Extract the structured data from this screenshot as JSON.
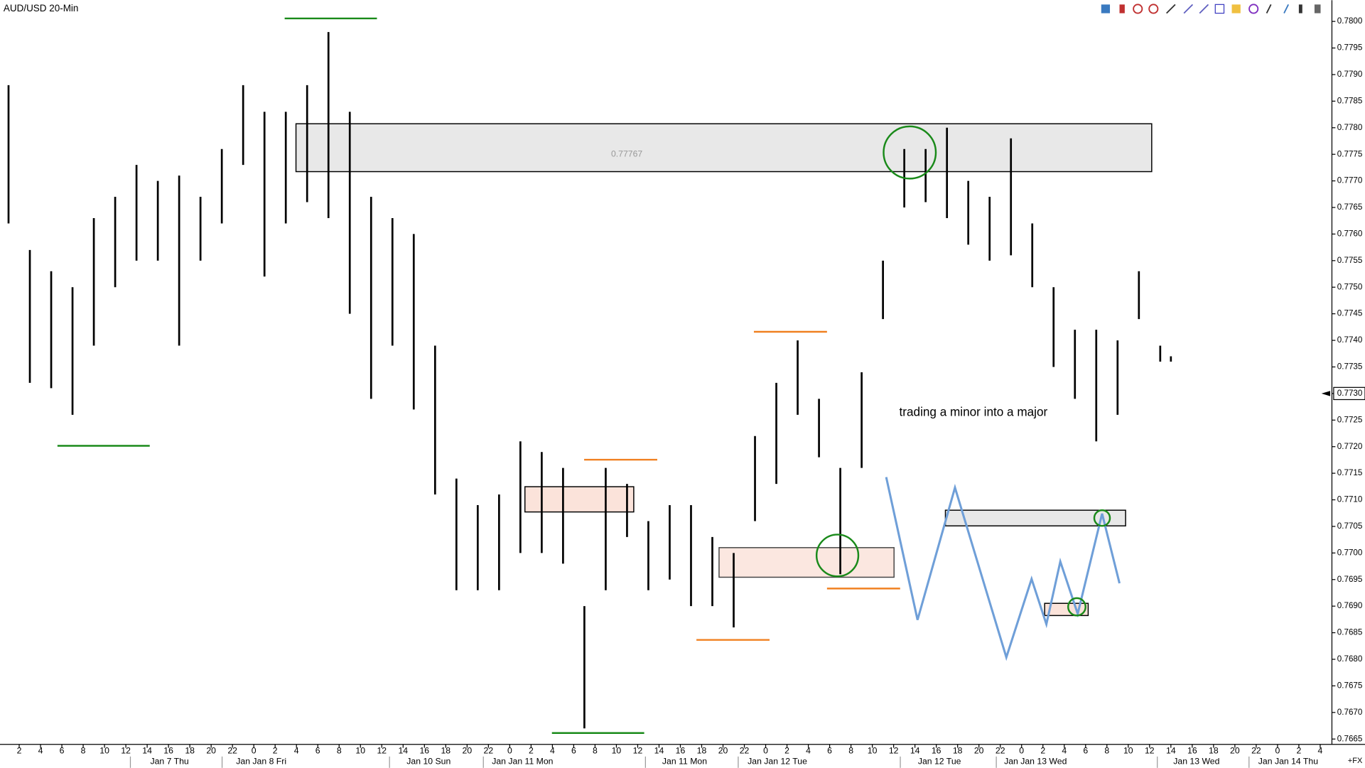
{
  "chart_data": {
    "type": "ohlc",
    "title": "AUD/USD 20-Min",
    "color": "#000000",
    "xlim": [
      0.2,
      125.1
    ],
    "ylim": [
      0.7664,
      0.7804
    ],
    "x": [
      1,
      3,
      5,
      7,
      9,
      11,
      13,
      15,
      17,
      19,
      21,
      23,
      25,
      27,
      29,
      31,
      33,
      35,
      37,
      39,
      41,
      43,
      45,
      47,
      49,
      51,
      53,
      55,
      57,
      59,
      61,
      63,
      65,
      67,
      69,
      71,
      73,
      75,
      77,
      79,
      81,
      83,
      85,
      87,
      89,
      91,
      93,
      95,
      97,
      99,
      101,
      103,
      105,
      107,
      109,
      110
    ],
    "high": [
      0.7788,
      0.7757,
      0.7753,
      0.775,
      0.7763,
      0.7767,
      0.7773,
      0.777,
      0.7771,
      0.7767,
      0.7776,
      0.7788,
      0.7783,
      0.7783,
      0.7788,
      0.7798,
      0.7783,
      0.7767,
      0.7763,
      0.776,
      0.7739,
      0.7714,
      0.7709,
      0.7711,
      0.7721,
      0.7719,
      0.7716,
      0.769,
      0.7716,
      0.7713,
      0.7706,
      0.7709,
      0.7709,
      0.7703,
      0.77,
      0.7722,
      0.7732,
      0.774,
      0.7729,
      0.7716,
      0.7734,
      0.7755,
      0.7776,
      0.7776,
      0.778,
      0.777,
      0.7767,
      0.7778,
      0.7762,
      0.775,
      0.7742,
      0.7742,
      0.774,
      0.7753,
      0.7739,
      0.7737
    ],
    "low": [
      0.7762,
      0.7732,
      0.7731,
      0.7726,
      0.7739,
      0.775,
      0.7755,
      0.7755,
      0.7739,
      0.7755,
      0.7762,
      0.7773,
      0.7752,
      0.7762,
      0.7766,
      0.7763,
      0.7745,
      0.7729,
      0.7739,
      0.7727,
      0.7711,
      0.7693,
      0.7693,
      0.7693,
      0.77,
      0.77,
      0.7698,
      0.7667,
      0.7693,
      0.7703,
      0.7693,
      0.7695,
      0.769,
      0.769,
      0.7686,
      0.7706,
      0.7713,
      0.7726,
      0.7718,
      0.7696,
      0.7716,
      0.7744,
      0.7765,
      0.7766,
      0.7763,
      0.7758,
      0.7755,
      0.7756,
      0.775,
      0.7735,
      0.7729,
      0.7721,
      0.7726,
      0.7744,
      0.7736,
      0.7736
    ],
    "yticks": [
      {
        "value": 0.78,
        "label": "0.7800"
      },
      {
        "value": 0.7795,
        "label": "0.7795"
      },
      {
        "value": 0.779,
        "label": "0.7790"
      },
      {
        "value": 0.7785,
        "label": "0.7785"
      },
      {
        "value": 0.778,
        "label": "0.7780"
      },
      {
        "value": 0.7775,
        "label": "0.7775"
      },
      {
        "value": 0.777,
        "label": "0.7770"
      },
      {
        "value": 0.7765,
        "label": "0.7765"
      },
      {
        "value": 0.776,
        "label": "0.7760"
      },
      {
        "value": 0.7755,
        "label": "0.7755"
      },
      {
        "value": 0.775,
        "label": "0.7750"
      },
      {
        "value": 0.7745,
        "label": "0.7745"
      },
      {
        "value": 0.774,
        "label": "0.7740"
      },
      {
        "value": 0.7735,
        "label": "0.7735"
      },
      {
        "value": 0.773,
        "label": "0.7730"
      },
      {
        "value": 0.7725,
        "label": "0.7725"
      },
      {
        "value": 0.772,
        "label": "0.7720"
      },
      {
        "value": 0.7715,
        "label": "0.7715"
      },
      {
        "value": 0.771,
        "label": "0.7710"
      },
      {
        "value": 0.7705,
        "label": "0.7705"
      },
      {
        "value": 0.77,
        "label": "0.7700"
      },
      {
        "value": 0.7695,
        "label": "0.7695"
      },
      {
        "value": 0.769,
        "label": "0.7690"
      },
      {
        "value": 0.7685,
        "label": "0.7685"
      },
      {
        "value": 0.768,
        "label": "0.7680"
      },
      {
        "value": 0.7675,
        "label": "0.7675"
      },
      {
        "value": 0.767,
        "label": "0.7670"
      },
      {
        "value": 0.7665,
        "label": "0.7665"
      }
    ],
    "xticks": [
      2,
      4,
      6,
      8,
      10,
      12,
      14,
      16,
      18,
      20,
      22,
      {
        "value": 24,
        "label": "0"
      },
      {
        "value": 26,
        "label": "2"
      },
      {
        "value": 28,
        "label": "4"
      },
      {
        "value": 30,
        "label": "6"
      },
      {
        "value": 32,
        "label": "8"
      },
      {
        "value": 34,
        "label": "10"
      },
      {
        "value": 36,
        "label": "12"
      },
      {
        "value": 38,
        "label": "14"
      },
      {
        "value": 40,
        "label": "16"
      },
      {
        "value": 42,
        "label": "18"
      },
      {
        "value": 44,
        "label": "20"
      },
      {
        "value": 46,
        "label": "22"
      },
      {
        "value": 48,
        "label": "0"
      },
      {
        "value": 50,
        "label": "2"
      },
      {
        "value": 52,
        "label": "4"
      },
      {
        "value": 54,
        "label": "6"
      },
      {
        "value": 56,
        "label": "8"
      },
      {
        "value": 58,
        "label": "10"
      },
      {
        "value": 60,
        "label": "12"
      },
      {
        "value": 62,
        "label": "14"
      },
      {
        "value": 64,
        "label": "16"
      },
      {
        "value": 66,
        "label": "18"
      },
      {
        "value": 68,
        "label": "20"
      },
      {
        "value": 70,
        "label": "22"
      },
      {
        "value": 72,
        "label": "0"
      },
      {
        "value": 74,
        "label": "2"
      },
      {
        "value": 76,
        "label": "4"
      },
      {
        "value": 78,
        "label": "6"
      },
      {
        "value": 80,
        "label": "8"
      },
      {
        "value": 82,
        "label": "10"
      },
      {
        "value": 84,
        "label": "12"
      },
      {
        "value": 86,
        "label": "14"
      },
      {
        "value": 88,
        "label": "16"
      },
      {
        "value": 90,
        "label": "18"
      },
      {
        "value": 92,
        "label": "20"
      },
      {
        "value": 94,
        "label": "22"
      },
      {
        "value": 96,
        "label": "0"
      },
      {
        "value": 98,
        "label": "2"
      },
      {
        "value": 100,
        "label": "4"
      },
      {
        "value": 102,
        "label": "6"
      },
      {
        "value": 104,
        "label": "8"
      },
      {
        "value": 106,
        "label": "10"
      },
      {
        "value": 108,
        "label": "12"
      },
      {
        "value": 110,
        "label": "14"
      },
      {
        "value": 112,
        "label": "16"
      },
      {
        "value": 114,
        "label": "18"
      },
      {
        "value": 116,
        "label": "20"
      },
      {
        "value": 118,
        "label": "22"
      },
      {
        "value": 120,
        "label": "0"
      },
      {
        "value": 122,
        "label": "2"
      },
      {
        "value": 124,
        "label": "4"
      }
    ],
    "date_ticks": [
      {
        "value": 16.1,
        "label": "Jan 7 Thu"
      },
      {
        "value": 24.7,
        "label": "Jan Jan 8 Fri"
      },
      {
        "value": 40.4,
        "label": "Jan 10 Sun"
      },
      {
        "value": 49.2,
        "label": "Jan Jan 11 Mon"
      },
      {
        "value": 64.4,
        "label": "Jan 11 Mon"
      },
      {
        "value": 73.1,
        "label": "Jan Jan 12 Tue"
      },
      {
        "value": 88.3,
        "label": "Jan 12 Tue"
      },
      {
        "value": 97.3,
        "label": "Jan Jan 13 Wed"
      },
      {
        "value": 112.4,
        "label": "Jan 13 Wed"
      },
      {
        "value": 121.0,
        "label": "Jan Jan 14 Thu"
      }
    ],
    "last_price": {
      "value": 0.773,
      "label": "0.7730"
    },
    "zone_label": "0.77767",
    "annotation": "trading a minor into a major",
    "corner_label": "+FX"
  }
}
